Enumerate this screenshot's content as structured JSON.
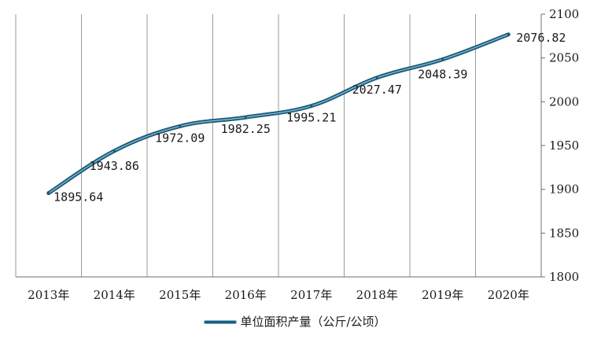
{
  "chart_data": {
    "type": "line",
    "categories": [
      "2013年",
      "2014年",
      "2015年",
      "2016年",
      "2017年",
      "2018年",
      "2019年",
      "2020年"
    ],
    "series": [
      {
        "name": "单位面积产量（公斤/公顷）",
        "values": [
          1895.64,
          1943.86,
          1972.09,
          1982.25,
          1995.21,
          2027.47,
          2048.39,
          2076.82
        ]
      }
    ],
    "data_labels": [
      "1895.64",
      "1943.86",
      "1972.09",
      "1982.25",
      "1995.21",
      "2027.47",
      "2048.39",
      "2076.82"
    ],
    "y_ticks": [
      "1800",
      "1850",
      "1900",
      "1950",
      "2000",
      "2050",
      "2100"
    ],
    "ylim": [
      1800,
      2100
    ],
    "y_axis_side": "right",
    "grid": "vertical",
    "legend_position": "bottom",
    "colors": {
      "line": "#1d5c7a",
      "highlight": "#8cc0d8",
      "grid": "#9a9a9a"
    }
  }
}
